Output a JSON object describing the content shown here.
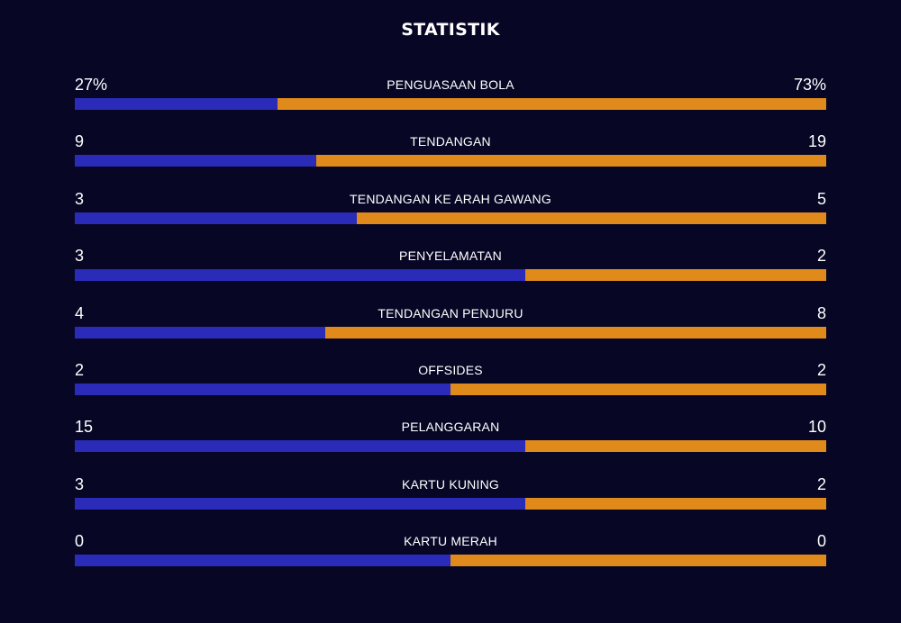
{
  "title": "STATISTIK",
  "colors": {
    "background": "#070625",
    "home": "#2a2bb8",
    "away": "#e08a1b"
  },
  "stats": [
    {
      "label": "PENGUASAAN BOLA",
      "home": "27%",
      "away": "73%",
      "home_share": 0.27
    },
    {
      "label": "TENDANGAN",
      "home": "9",
      "away": "19",
      "home_share": 0.3214
    },
    {
      "label": "TENDANGAN KE ARAH GAWANG",
      "home": "3",
      "away": "5",
      "home_share": 0.375
    },
    {
      "label": "PENYELAMATAN",
      "home": "3",
      "away": "2",
      "home_share": 0.6
    },
    {
      "label": "TENDANGAN PENJURU",
      "home": "4",
      "away": "8",
      "home_share": 0.3333
    },
    {
      "label": "OFFSIDES",
      "home": "2",
      "away": "2",
      "home_share": 0.5
    },
    {
      "label": "PELANGGARAN",
      "home": "15",
      "away": "10",
      "home_share": 0.6
    },
    {
      "label": "KARTU KUNING",
      "home": "3",
      "away": "2",
      "home_share": 0.6
    },
    {
      "label": "KARTU MERAH",
      "home": "0",
      "away": "0",
      "home_share": 0.5
    }
  ]
}
